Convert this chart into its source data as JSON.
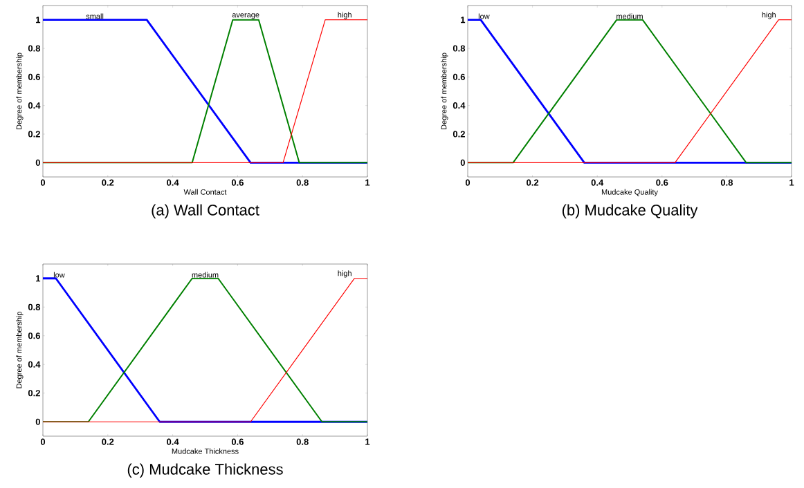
{
  "chart_data": [
    {
      "type": "line",
      "title": "(a) Wall Contact",
      "xlabel": "Wall Contact",
      "ylabel": "Degree of membership",
      "xlim": [
        0,
        1
      ],
      "ylim": [
        -0.1,
        1.1
      ],
      "xticks": [
        0,
        0.2,
        0.4,
        0.6,
        0.8,
        1
      ],
      "yticks": [
        0,
        0.2,
        0.4,
        0.6,
        0.8,
        1
      ],
      "grid": false,
      "legend": false,
      "marker": "none",
      "line_style": "solid",
      "series": [
        {
          "name": "small",
          "color": "#0000ff",
          "x": [
            0,
            0.32,
            0.64,
            1
          ],
          "values": [
            1,
            1,
            0,
            0
          ]
        },
        {
          "name": "average",
          "color": "#008000",
          "x": [
            0,
            0.46,
            0.585,
            0.665,
            0.79,
            1
          ],
          "values": [
            0,
            0,
            1,
            1,
            0,
            0
          ]
        },
        {
          "name": "high",
          "color": "#ff0000",
          "x": [
            0,
            0.74,
            0.87,
            1
          ],
          "values": [
            0,
            0,
            1,
            1
          ]
        }
      ]
    },
    {
      "type": "line",
      "title": "(b) Mudcake Quality",
      "xlabel": "Mudcake Quality",
      "ylabel": "Degree of membership",
      "xlim": [
        0,
        1
      ],
      "ylim": [
        -0.1,
        1.1
      ],
      "xticks": [
        0,
        0.2,
        0.4,
        0.6,
        0.8,
        1
      ],
      "yticks": [
        0,
        0.2,
        0.4,
        0.6,
        0.8,
        1
      ],
      "grid": false,
      "legend": false,
      "marker": "none",
      "line_style": "solid",
      "series": [
        {
          "name": "low",
          "color": "#0000ff",
          "x": [
            0,
            0.04,
            0.36,
            1
          ],
          "values": [
            1,
            1,
            0,
            0
          ]
        },
        {
          "name": "medium",
          "color": "#008000",
          "x": [
            0,
            0.14,
            0.46,
            0.54,
            0.86,
            1
          ],
          "values": [
            0,
            0,
            1,
            1,
            0,
            0
          ]
        },
        {
          "name": "high",
          "color": "#ff0000",
          "x": [
            0,
            0.64,
            0.96,
            1
          ],
          "values": [
            0,
            0,
            1,
            1
          ]
        }
      ]
    },
    {
      "type": "line",
      "title": "(c) Mudcake Thickness",
      "xlabel": "Mudcake Thickness",
      "ylabel": "Degree of membership",
      "xlim": [
        0,
        1
      ],
      "ylim": [
        -0.1,
        1.1
      ],
      "xticks": [
        0,
        0.2,
        0.4,
        0.6,
        0.8,
        1
      ],
      "yticks": [
        0,
        0.2,
        0.4,
        0.6,
        0.8,
        1
      ],
      "grid": false,
      "legend": false,
      "marker": "none",
      "line_style": "solid",
      "series": [
        {
          "name": "low",
          "color": "#0000ff",
          "x": [
            0,
            0.04,
            0.36,
            1
          ],
          "values": [
            1,
            1,
            0,
            0
          ]
        },
        {
          "name": "medium",
          "color": "#008000",
          "x": [
            0,
            0.14,
            0.46,
            0.54,
            0.86,
            1
          ],
          "values": [
            0,
            0,
            1,
            1,
            0,
            0
          ]
        },
        {
          "name": "high",
          "color": "#ff0000",
          "x": [
            0,
            0.64,
            0.96,
            1
          ],
          "values": [
            0,
            0,
            1,
            1
          ]
        }
      ]
    }
  ]
}
